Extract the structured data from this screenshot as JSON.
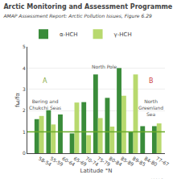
{
  "chart_data": {
    "type": "bar",
    "title": "Arctic Monitoring and Assessment Programme",
    "subtitle": "AMAP Assessment Report: Arctic Pollution Issues, Figure 6.29",
    "x_label": "Latitude °N",
    "y_label": "fω/fα",
    "categories": [
      "58-54",
      "55-59",
      "60-64",
      "65-69",
      "70-74",
      "75-79",
      "80-84",
      "85-89",
      "89-85",
      "84-80",
      "77-67"
    ],
    "series": [
      {
        "name": "α-HCH",
        "color": "#3a8c3a",
        "values": [
          1.6,
          2.02,
          1.82,
          0.93,
          2.4,
          3.7,
          2.6,
          4.0,
          1.0,
          1.27,
          1.27
        ]
      },
      {
        "name": "γ-HCH",
        "color": "#b8d96e",
        "values": [
          1.75,
          1.35,
          null,
          2.38,
          0.85,
          1.65,
          1.25,
          2.7,
          3.7,
          null,
          1.4
        ]
      }
    ],
    "ylim": [
      0,
      5
    ],
    "yticks": [
      0,
      1,
      2,
      3,
      4,
      5
    ],
    "grid": true,
    "legend": "top",
    "reference_lines": [
      {
        "y": 1.0,
        "color": "#6aaa2a"
      }
    ],
    "annotations": [
      {
        "text": "A",
        "x": 0.5,
        "y": 3.15,
        "color": "#88aa44"
      },
      {
        "text": "Bering and\nChukchi Seas",
        "x": 0.5,
        "y": 2.65
      },
      {
        "text": "B",
        "x": 9.5,
        "y": 3.15,
        "color": "#cc4444"
      },
      {
        "text": "North\nGreenland\nSea",
        "x": 9.5,
        "y": 2.65
      },
      {
        "text": "North Pole",
        "x": 5.5,
        "y": 3.85
      }
    ],
    "source": "AMAP"
  }
}
